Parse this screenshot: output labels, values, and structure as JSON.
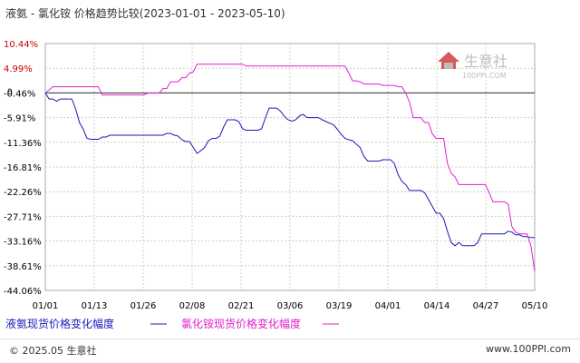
{
  "chart_data": {
    "type": "line",
    "title": "液氨 - 氯化铵 价格趋势比较(2023-01-01 - 2023-05-10)",
    "x_ticks": [
      "01/01",
      "01/13",
      "01/26",
      "02/08",
      "02/21",
      "03/06",
      "03/19",
      "04/01",
      "04/14",
      "04/27",
      "05/10"
    ],
    "y_ticks": [
      "10.44%",
      "4.99%",
      "-0.46%",
      "-5.91%",
      "-11.36%",
      "-16.81%",
      "-22.26%",
      "-27.71%",
      "-33.16%",
      "-38.61%",
      "-44.06%"
    ],
    "ylim": [
      -44.06,
      10.44
    ],
    "xlim": [
      0,
      129
    ],
    "x_start_date": "2023-01-01",
    "zero_label": "0",
    "series": [
      {
        "name": "液氨现货价格变化幅度",
        "color": "#1a1ab8",
        "points": [
          [
            0,
            -0.46
          ],
          [
            1,
            -1.8
          ],
          [
            2,
            -1.8
          ],
          [
            3,
            -2.3
          ],
          [
            4,
            -1.8
          ],
          [
            5,
            -1.8
          ],
          [
            7,
            -1.8
          ],
          [
            8,
            -4.0
          ],
          [
            9,
            -7.0
          ],
          [
            10,
            -8.5
          ],
          [
            11,
            -10.5
          ],
          [
            12,
            -10.7
          ],
          [
            13,
            -10.7
          ],
          [
            14,
            -10.7
          ],
          [
            15,
            -10.2
          ],
          [
            16,
            -10.2
          ],
          [
            17,
            -9.8
          ],
          [
            18,
            -9.8
          ],
          [
            20,
            -9.8
          ],
          [
            25,
            -9.8
          ],
          [
            30,
            -9.8
          ],
          [
            31,
            -9.8
          ],
          [
            32,
            -9.4
          ],
          [
            33,
            -9.4
          ],
          [
            34,
            -9.8
          ],
          [
            35,
            -10.0
          ],
          [
            36,
            -10.8
          ],
          [
            37,
            -11.2
          ],
          [
            38,
            -11.2
          ],
          [
            39,
            -12.5
          ],
          [
            40,
            -13.8
          ],
          [
            41,
            -13.2
          ],
          [
            42,
            -12.5
          ],
          [
            43,
            -11.0
          ],
          [
            44,
            -10.5
          ],
          [
            45,
            -10.5
          ],
          [
            46,
            -10.0
          ],
          [
            47,
            -8.0
          ],
          [
            48,
            -6.4
          ],
          [
            49,
            -6.4
          ],
          [
            50,
            -6.4
          ],
          [
            51,
            -6.8
          ],
          [
            52,
            -8.4
          ],
          [
            53,
            -8.7
          ],
          [
            54,
            -8.7
          ],
          [
            56,
            -8.7
          ],
          [
            57,
            -8.4
          ],
          [
            58,
            -6.0
          ],
          [
            59,
            -3.8
          ],
          [
            60,
            -3.8
          ],
          [
            61,
            -3.8
          ],
          [
            62,
            -4.5
          ],
          [
            63,
            -5.6
          ],
          [
            64,
            -6.4
          ],
          [
            65,
            -6.7
          ],
          [
            66,
            -6.4
          ],
          [
            67,
            -5.5
          ],
          [
            68,
            -5.2
          ],
          [
            69,
            -5.9
          ],
          [
            70,
            -5.9
          ],
          [
            72,
            -5.9
          ],
          [
            73,
            -6.4
          ],
          [
            74,
            -6.8
          ],
          [
            76,
            -7.5
          ],
          [
            77,
            -8.5
          ],
          [
            78,
            -9.6
          ],
          [
            79,
            -10.5
          ],
          [
            80,
            -10.8
          ],
          [
            81,
            -11.0
          ],
          [
            82,
            -11.8
          ],
          [
            83,
            -12.5
          ],
          [
            84,
            -14.5
          ],
          [
            85,
            -15.5
          ],
          [
            86,
            -15.5
          ],
          [
            88,
            -15.5
          ],
          [
            89,
            -15.2
          ],
          [
            90,
            -15.2
          ],
          [
            91,
            -15.2
          ],
          [
            92,
            -16.0
          ],
          [
            93,
            -18.5
          ],
          [
            94,
            -20.0
          ],
          [
            95,
            -20.7
          ],
          [
            96,
            -22.0
          ],
          [
            97,
            -22.0
          ],
          [
            99,
            -22.0
          ],
          [
            100,
            -22.5
          ],
          [
            101,
            -24.0
          ],
          [
            102,
            -25.5
          ],
          [
            103,
            -27.0
          ],
          [
            104,
            -27.0
          ],
          [
            105,
            -28.2
          ],
          [
            106,
            -31.0
          ],
          [
            107,
            -33.5
          ],
          [
            108,
            -34.2
          ],
          [
            109,
            -33.5
          ],
          [
            110,
            -34.2
          ],
          [
            112,
            -34.2
          ],
          [
            113,
            -34.2
          ],
          [
            114,
            -33.5
          ],
          [
            115,
            -31.6
          ],
          [
            116,
            -31.6
          ],
          [
            118,
            -31.6
          ],
          [
            120,
            -31.6
          ],
          [
            121,
            -31.6
          ],
          [
            122,
            -31.0
          ],
          [
            123,
            -31.2
          ],
          [
            124,
            -31.8
          ],
          [
            125,
            -31.8
          ],
          [
            126,
            -32.2
          ],
          [
            127,
            -32.2
          ],
          [
            128,
            -32.4
          ],
          [
            129,
            -32.4
          ]
        ]
      },
      {
        "name": "氯化铵现货价格变化幅度",
        "color": "#e020d0",
        "points": [
          [
            0,
            -0.46
          ],
          [
            1,
            0.2
          ],
          [
            2,
            0.9
          ],
          [
            5,
            0.9
          ],
          [
            10,
            0.9
          ],
          [
            14,
            0.9
          ],
          [
            15,
            -0.9
          ],
          [
            16,
            -0.9
          ],
          [
            20,
            -0.9
          ],
          [
            25,
            -0.9
          ],
          [
            26,
            -0.9
          ],
          [
            27,
            -0.5
          ],
          [
            28,
            -0.5
          ],
          [
            29,
            -0.5
          ],
          [
            30,
            -0.5
          ],
          [
            31,
            0.5
          ],
          [
            32,
            0.5
          ],
          [
            33,
            2.0
          ],
          [
            34,
            2.0
          ],
          [
            35,
            2.0
          ],
          [
            36,
            2.9
          ],
          [
            37,
            2.9
          ],
          [
            38,
            3.9
          ],
          [
            39,
            4.2
          ],
          [
            40,
            5.9
          ],
          [
            41,
            5.9
          ],
          [
            45,
            5.9
          ],
          [
            50,
            5.9
          ],
          [
            52,
            5.9
          ],
          [
            53,
            5.5
          ],
          [
            55,
            5.5
          ],
          [
            60,
            5.5
          ],
          [
            65,
            5.5
          ],
          [
            70,
            5.5
          ],
          [
            72,
            5.5
          ],
          [
            75,
            5.5
          ],
          [
            78,
            5.5
          ],
          [
            79,
            5.5
          ],
          [
            80,
            3.9
          ],
          [
            81,
            2.2
          ],
          [
            82,
            2.2
          ],
          [
            83,
            2.0
          ],
          [
            84,
            1.5
          ],
          [
            85,
            1.5
          ],
          [
            88,
            1.5
          ],
          [
            89,
            1.2
          ],
          [
            90,
            1.2
          ],
          [
            92,
            1.2
          ],
          [
            93,
            0.9
          ],
          [
            94,
            0.9
          ],
          [
            95,
            -0.5
          ],
          [
            96,
            -2.5
          ],
          [
            97,
            -5.9
          ],
          [
            98,
            -5.9
          ],
          [
            99,
            -5.9
          ],
          [
            100,
            -7.0
          ],
          [
            101,
            -7.0
          ],
          [
            102,
            -9.5
          ],
          [
            103,
            -10.5
          ],
          [
            104,
            -10.5
          ],
          [
            105,
            -10.5
          ],
          [
            106,
            -16.0
          ],
          [
            107,
            -18.2
          ],
          [
            108,
            -19.0
          ],
          [
            109,
            -20.7
          ],
          [
            110,
            -20.7
          ],
          [
            115,
            -20.7
          ],
          [
            116,
            -20.7
          ],
          [
            117,
            -22.5
          ],
          [
            118,
            -24.5
          ],
          [
            119,
            -24.5
          ],
          [
            121,
            -24.5
          ],
          [
            122,
            -25.0
          ],
          [
            123,
            -30.0
          ],
          [
            124,
            -31.2
          ],
          [
            125,
            -31.6
          ],
          [
            126,
            -31.6
          ],
          [
            127,
            -31.6
          ],
          [
            128,
            -34.2
          ],
          [
            129,
            -39.8
          ]
        ]
      }
    ],
    "grid": true,
    "legend_placement": "bottom-left"
  },
  "watermark": {
    "logo_text": "生意社",
    "logo_url": "100PPI.COM"
  },
  "footer": {
    "left": "© 2025.05 生意社",
    "right": "www.100PPI.com"
  }
}
